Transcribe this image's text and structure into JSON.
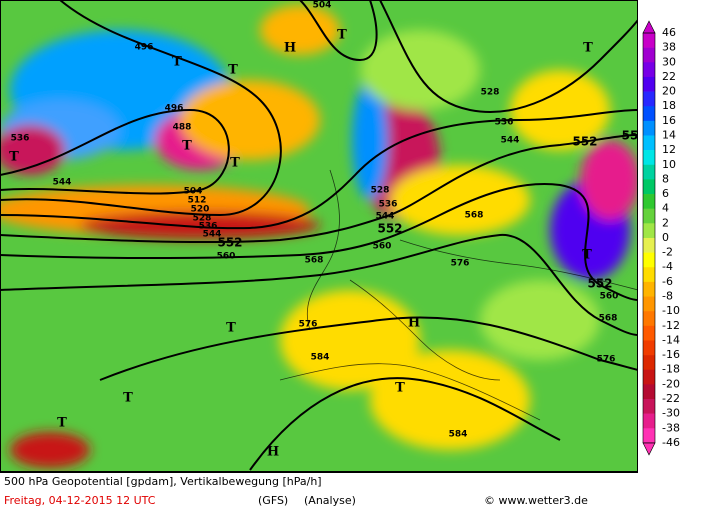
{
  "map": {
    "legend": {
      "labels": [
        "46",
        "38",
        "30",
        "22",
        "20",
        "18",
        "16",
        "14",
        "12",
        "10",
        "8",
        "6",
        "4",
        "2",
        "0",
        "-2",
        "-4",
        "-6",
        "-8",
        "-10",
        "-12",
        "-14",
        "-16",
        "-18",
        "-20",
        "-22",
        "-30",
        "-38",
        "-46"
      ],
      "colors": [
        "#c800c8",
        "#a000d0",
        "#7800e6",
        "#5000f0",
        "#2828ff",
        "#0050ff",
        "#0090ff",
        "#00c0ff",
        "#00e6e6",
        "#00d2a0",
        "#00c864",
        "#30c830",
        "#64d23c",
        "#a0e646",
        "#e6f050",
        "#ffff00",
        "#ffdc00",
        "#ffb400",
        "#ff9600",
        "#ff7800",
        "#ff5a00",
        "#f03c00",
        "#dc2800",
        "#c81414",
        "#b40a32",
        "#c8145a",
        "#e61e8c",
        "#ff32b4"
      ]
    },
    "contour_labels": [
      "504",
      "496",
      "496",
      "488",
      "536",
      "544",
      "504",
      "512",
      "520",
      "528",
      "536",
      "544",
      "552",
      "560",
      "568",
      "528",
      "536",
      "544",
      "552",
      "560",
      "568",
      "576",
      "528",
      "536",
      "544",
      "552",
      "55",
      "552",
      "560",
      "568",
      "576",
      "576",
      "584",
      "584"
    ],
    "centers": [
      "H",
      "T",
      "T",
      "T",
      "T",
      "T",
      "T",
      "T",
      "T",
      "T",
      "H",
      "T",
      "T",
      "T",
      "H"
    ],
    "footer": {
      "title": "500 hPa Geopotential [gpdam], Vertikalbewegung [hPa/h]",
      "date": "Freitag, 04-12-2015  12 UTC",
      "model": "(GFS)",
      "kind": "(Analyse)",
      "source": "© www.wetter3.de"
    }
  }
}
